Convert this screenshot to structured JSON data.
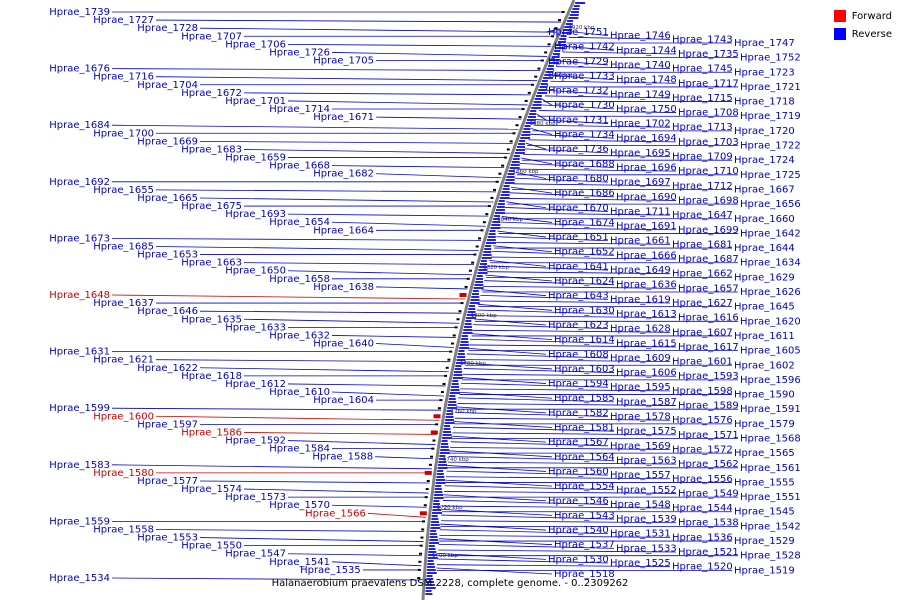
{
  "caption": "Halanaerobium praevalens DSM 2228, complete genome. - 0..2309262",
  "legend": [
    {
      "label": "Forward",
      "color": "#ff0000"
    },
    {
      "label": "Reverse",
      "color": "#0000ff"
    }
  ],
  "colors": {
    "forward": "#cc0000",
    "reverse": "#0000cc",
    "backbone": "#808080"
  },
  "ticks": [
    "1920 kbp",
    "1900 kbp",
    "1880 kbp",
    "1860 kbp",
    "1840 kbp",
    "1820 kbp",
    "1800 kbp",
    "1780 kbp",
    "1760 kbp",
    "1740 kbp",
    "1720 kbp",
    "1700 kbp"
  ],
  "genes_left": [
    {
      "label": "Hprae_1739",
      "strand": "reverse"
    },
    {
      "label": "Hprae_1727",
      "strand": "reverse"
    },
    {
      "label": "Hprae_1728",
      "strand": "reverse"
    },
    {
      "label": "Hprae_1707",
      "strand": "reverse"
    },
    {
      "label": "Hprae_1706",
      "strand": "reverse"
    },
    {
      "label": "Hprae_1726",
      "strand": "reverse"
    },
    {
      "label": "Hprae_1705",
      "strand": "reverse"
    },
    {
      "label": "Hprae_1676",
      "strand": "reverse"
    },
    {
      "label": "Hprae_1716",
      "strand": "reverse"
    },
    {
      "label": "Hprae_1704",
      "strand": "reverse"
    },
    {
      "label": "Hprae_1672",
      "strand": "reverse"
    },
    {
      "label": "Hprae_1701",
      "strand": "reverse"
    },
    {
      "label": "Hprae_1714",
      "strand": "reverse"
    },
    {
      "label": "Hprae_1671",
      "strand": "reverse"
    },
    {
      "label": "Hprae_1684",
      "strand": "reverse"
    },
    {
      "label": "Hprae_1700",
      "strand": "reverse"
    },
    {
      "label": "Hprae_1669",
      "strand": "reverse"
    },
    {
      "label": "Hprae_1683",
      "strand": "reverse"
    },
    {
      "label": "Hprae_1659",
      "strand": "reverse"
    },
    {
      "label": "Hprae_1668",
      "strand": "reverse"
    },
    {
      "label": "Hprae_1682",
      "strand": "reverse"
    },
    {
      "label": "Hprae_1692",
      "strand": "reverse"
    },
    {
      "label": "Hprae_1655",
      "strand": "reverse"
    },
    {
      "label": "Hprae_1665",
      "strand": "reverse"
    },
    {
      "label": "Hprae_1675",
      "strand": "reverse"
    },
    {
      "label": "Hprae_1693",
      "strand": "reverse"
    },
    {
      "label": "Hprae_1654",
      "strand": "reverse"
    },
    {
      "label": "Hprae_1664",
      "strand": "reverse"
    },
    {
      "label": "Hprae_1673",
      "strand": "reverse"
    },
    {
      "label": "Hprae_1685",
      "strand": "reverse"
    },
    {
      "label": "Hprae_1653",
      "strand": "reverse"
    },
    {
      "label": "Hprae_1663",
      "strand": "reverse"
    },
    {
      "label": "Hprae_1650",
      "strand": "reverse"
    },
    {
      "label": "Hprae_1658",
      "strand": "reverse"
    },
    {
      "label": "Hprae_1638",
      "strand": "reverse"
    },
    {
      "label": "Hprae_1648",
      "strand": "forward"
    },
    {
      "label": "Hprae_1637",
      "strand": "reverse"
    },
    {
      "label": "Hprae_1646",
      "strand": "reverse"
    },
    {
      "label": "Hprae_1635",
      "strand": "reverse"
    },
    {
      "label": "Hprae_1633",
      "strand": "reverse"
    },
    {
      "label": "Hprae_1632",
      "strand": "reverse"
    },
    {
      "label": "Hprae_1640",
      "strand": "reverse"
    },
    {
      "label": "Hprae_1631",
      "strand": "reverse"
    },
    {
      "label": "Hprae_1621",
      "strand": "reverse"
    },
    {
      "label": "Hprae_1622",
      "strand": "reverse"
    },
    {
      "label": "Hprae_1618",
      "strand": "reverse"
    },
    {
      "label": "Hprae_1612",
      "strand": "reverse"
    },
    {
      "label": "Hprae_1610",
      "strand": "reverse"
    },
    {
      "label": "Hprae_1604",
      "strand": "reverse"
    },
    {
      "label": "Hprae_1599",
      "strand": "reverse"
    },
    {
      "label": "Hprae_1600",
      "strand": "forward"
    },
    {
      "label": "Hprae_1597",
      "strand": "reverse"
    },
    {
      "label": "Hprae_1586",
      "strand": "forward"
    },
    {
      "label": "Hprae_1592",
      "strand": "reverse"
    },
    {
      "label": "Hprae_1584",
      "strand": "reverse"
    },
    {
      "label": "Hprae_1588",
      "strand": "reverse"
    },
    {
      "label": "Hprae_1583",
      "strand": "reverse"
    },
    {
      "label": "Hprae_1580",
      "strand": "forward"
    },
    {
      "label": "Hprae_1577",
      "strand": "reverse"
    },
    {
      "label": "Hprae_1574",
      "strand": "reverse"
    },
    {
      "label": "Hprae_1573",
      "strand": "reverse"
    },
    {
      "label": "Hprae_1570",
      "strand": "reverse"
    },
    {
      "label": "Hprae_1566",
      "strand": "forward"
    },
    {
      "label": "Hprae_1559",
      "strand": "reverse"
    },
    {
      "label": "Hprae_1558",
      "strand": "reverse"
    },
    {
      "label": "Hprae_1553",
      "strand": "reverse"
    },
    {
      "label": "Hprae_1550",
      "strand": "reverse"
    },
    {
      "label": "Hprae_1547",
      "strand": "reverse"
    },
    {
      "label": "Hprae_1541",
      "strand": "reverse"
    },
    {
      "label": "Hprae_1535",
      "strand": "reverse"
    },
    {
      "label": "Hprae_1534",
      "strand": "reverse"
    }
  ],
  "genes_right": [
    {
      "label": "Hprae_1751",
      "strand": "reverse"
    },
    {
      "label": "Hprae_1746",
      "strand": "reverse"
    },
    {
      "label": "Hprae_1743",
      "strand": "reverse"
    },
    {
      "label": "Hprae_1747",
      "strand": "reverse"
    },
    {
      "label": "Hprae_1742",
      "strand": "reverse"
    },
    {
      "label": "Hprae_1744",
      "strand": "reverse"
    },
    {
      "label": "Hprae_1735",
      "strand": "reverse"
    },
    {
      "label": "Hprae_1752",
      "strand": "reverse"
    },
    {
      "label": "Hprae_1729",
      "strand": "reverse"
    },
    {
      "label": "Hprae_1740",
      "strand": "reverse"
    },
    {
      "label": "Hprae_1745",
      "strand": "reverse"
    },
    {
      "label": "Hprae_1723",
      "strand": "reverse"
    },
    {
      "label": "Hprae_1733",
      "strand": "reverse"
    },
    {
      "label": "Hprae_1748",
      "strand": "reverse"
    },
    {
      "label": "Hprae_1717",
      "strand": "reverse"
    },
    {
      "label": "Hprae_1721",
      "strand": "reverse"
    },
    {
      "label": "Hprae_1732",
      "strand": "reverse"
    },
    {
      "label": "Hprae_1749",
      "strand": "reverse"
    },
    {
      "label": "Hprae_1715",
      "strand": "reverse"
    },
    {
      "label": "Hprae_1718",
      "strand": "reverse"
    },
    {
      "label": "Hprae_1730",
      "strand": "reverse"
    },
    {
      "label": "Hprae_1750",
      "strand": "reverse"
    },
    {
      "label": "Hprae_1708",
      "strand": "reverse"
    },
    {
      "label": "Hprae_1719",
      "strand": "reverse"
    },
    {
      "label": "Hprae_1731",
      "strand": "reverse"
    },
    {
      "label": "Hprae_1702",
      "strand": "reverse"
    },
    {
      "label": "Hprae_1713",
      "strand": "reverse"
    },
    {
      "label": "Hprae_1720",
      "strand": "reverse"
    },
    {
      "label": "Hprae_1734",
      "strand": "reverse"
    },
    {
      "label": "Hprae_1694",
      "strand": "reverse"
    },
    {
      "label": "Hprae_1703",
      "strand": "reverse"
    },
    {
      "label": "Hprae_1722",
      "strand": "reverse"
    },
    {
      "label": "Hprae_1736",
      "strand": "reverse"
    },
    {
      "label": "Hprae_1695",
      "strand": "reverse"
    },
    {
      "label": "Hprae_1709",
      "strand": "reverse"
    },
    {
      "label": "Hprae_1724",
      "strand": "reverse"
    },
    {
      "label": "Hprae_1688",
      "strand": "reverse"
    },
    {
      "label": "Hprae_1696",
      "strand": "reverse"
    },
    {
      "label": "Hprae_1710",
      "strand": "reverse"
    },
    {
      "label": "Hprae_1725",
      "strand": "reverse"
    },
    {
      "label": "Hprae_1680",
      "strand": "reverse"
    },
    {
      "label": "Hprae_1697",
      "strand": "reverse"
    },
    {
      "label": "Hprae_1712",
      "strand": "reverse"
    },
    {
      "label": "Hprae_1667",
      "strand": "reverse"
    },
    {
      "label": "Hprae_1686",
      "strand": "reverse"
    },
    {
      "label": "Hprae_1690",
      "strand": "reverse"
    },
    {
      "label": "Hprae_1698",
      "strand": "reverse"
    },
    {
      "label": "Hprae_1656",
      "strand": "reverse"
    },
    {
      "label": "Hprae_1670",
      "strand": "reverse"
    },
    {
      "label": "Hprae_1711",
      "strand": "reverse"
    },
    {
      "label": "Hprae_1647",
      "strand": "reverse"
    },
    {
      "label": "Hprae_1660",
      "strand": "reverse"
    },
    {
      "label": "Hprae_1674",
      "strand": "reverse"
    },
    {
      "label": "Hprae_1691",
      "strand": "reverse"
    },
    {
      "label": "Hprae_1699",
      "strand": "reverse"
    },
    {
      "label": "Hprae_1642",
      "strand": "reverse"
    },
    {
      "label": "Hprae_1651",
      "strand": "reverse"
    },
    {
      "label": "Hprae_1661",
      "strand": "reverse"
    },
    {
      "label": "Hprae_1681",
      "strand": "reverse"
    },
    {
      "label": "Hprae_1644",
      "strand": "reverse"
    },
    {
      "label": "Hprae_1652",
      "strand": "reverse"
    },
    {
      "label": "Hprae_1666",
      "strand": "reverse"
    },
    {
      "label": "Hprae_1687",
      "strand": "reverse"
    },
    {
      "label": "Hprae_1634",
      "strand": "reverse"
    },
    {
      "label": "Hprae_1641",
      "strand": "reverse"
    },
    {
      "label": "Hprae_1649",
      "strand": "reverse"
    },
    {
      "label": "Hprae_1662",
      "strand": "reverse"
    },
    {
      "label": "Hprae_1629",
      "strand": "reverse"
    },
    {
      "label": "Hprae_1624",
      "strand": "reverse"
    },
    {
      "label": "Hprae_1636",
      "strand": "reverse"
    },
    {
      "label": "Hprae_1657",
      "strand": "reverse"
    },
    {
      "label": "Hprae_1626",
      "strand": "reverse"
    },
    {
      "label": "Hprae_1643",
      "strand": "reverse"
    },
    {
      "label": "Hprae_1619",
      "strand": "reverse"
    },
    {
      "label": "Hprae_1627",
      "strand": "reverse"
    },
    {
      "label": "Hprae_1645",
      "strand": "reverse"
    },
    {
      "label": "Hprae_1630",
      "strand": "reverse"
    },
    {
      "label": "Hprae_1613",
      "strand": "reverse"
    },
    {
      "label": "Hprae_1616",
      "strand": "reverse"
    },
    {
      "label": "Hprae_1620",
      "strand": "reverse"
    },
    {
      "label": "Hprae_1623",
      "strand": "reverse"
    },
    {
      "label": "Hprae_1628",
      "strand": "reverse"
    },
    {
      "label": "Hprae_1607",
      "strand": "reverse"
    },
    {
      "label": "Hprae_1611",
      "strand": "reverse"
    },
    {
      "label": "Hprae_1614",
      "strand": "reverse"
    },
    {
      "label": "Hprae_1615",
      "strand": "reverse"
    },
    {
      "label": "Hprae_1617",
      "strand": "reverse"
    },
    {
      "label": "Hprae_1605",
      "strand": "reverse"
    },
    {
      "label": "Hprae_1608",
      "strand": "reverse"
    },
    {
      "label": "Hprae_1609",
      "strand": "reverse"
    },
    {
      "label": "Hprae_1601",
      "strand": "reverse"
    },
    {
      "label": "Hprae_1602",
      "strand": "reverse"
    },
    {
      "label": "Hprae_1603",
      "strand": "reverse"
    },
    {
      "label": "Hprae_1606",
      "strand": "reverse"
    },
    {
      "label": "Hprae_1593",
      "strand": "reverse"
    },
    {
      "label": "Hprae_1596",
      "strand": "reverse"
    },
    {
      "label": "Hprae_1594",
      "strand": "reverse"
    },
    {
      "label": "Hprae_1595",
      "strand": "reverse"
    },
    {
      "label": "Hprae_1598",
      "strand": "reverse"
    },
    {
      "label": "Hprae_1590",
      "strand": "reverse"
    },
    {
      "label": "Hprae_1585",
      "strand": "reverse"
    },
    {
      "label": "Hprae_1587",
      "strand": "reverse"
    },
    {
      "label": "Hprae_1589",
      "strand": "reverse"
    },
    {
      "label": "Hprae_1591",
      "strand": "reverse"
    },
    {
      "label": "Hprae_1582",
      "strand": "reverse"
    },
    {
      "label": "Hprae_1578",
      "strand": "reverse"
    },
    {
      "label": "Hprae_1576",
      "strand": "reverse"
    },
    {
      "label": "Hprae_1579",
      "strand": "reverse"
    },
    {
      "label": "Hprae_1581",
      "strand": "reverse"
    },
    {
      "label": "Hprae_1575",
      "strand": "reverse"
    },
    {
      "label": "Hprae_1571",
      "strand": "reverse"
    },
    {
      "label": "Hprae_1568",
      "strand": "reverse"
    },
    {
      "label": "Hprae_1567",
      "strand": "reverse"
    },
    {
      "label": "Hprae_1569",
      "strand": "reverse"
    },
    {
      "label": "Hprae_1572",
      "strand": "reverse"
    },
    {
      "label": "Hprae_1565",
      "strand": "reverse"
    },
    {
      "label": "Hprae_1564",
      "strand": "reverse"
    },
    {
      "label": "Hprae_1563",
      "strand": "reverse"
    },
    {
      "label": "Hprae_1562",
      "strand": "reverse"
    },
    {
      "label": "Hprae_1561",
      "strand": "reverse"
    },
    {
      "label": "Hprae_1560",
      "strand": "reverse"
    },
    {
      "label": "Hprae_1557",
      "strand": "reverse"
    },
    {
      "label": "Hprae_1556",
      "strand": "reverse"
    },
    {
      "label": "Hprae_1555",
      "strand": "reverse"
    },
    {
      "label": "Hprae_1554",
      "strand": "reverse"
    },
    {
      "label": "Hprae_1552",
      "strand": "reverse"
    },
    {
      "label": "Hprae_1549",
      "strand": "reverse"
    },
    {
      "label": "Hprae_1551",
      "strand": "reverse"
    },
    {
      "label": "Hprae_1546",
      "strand": "reverse"
    },
    {
      "label": "Hprae_1548",
      "strand": "reverse"
    },
    {
      "label": "Hprae_1544",
      "strand": "reverse"
    },
    {
      "label": "Hprae_1545",
      "strand": "reverse"
    },
    {
      "label": "Hprae_1543",
      "strand": "reverse"
    },
    {
      "label": "Hprae_1539",
      "strand": "reverse"
    },
    {
      "label": "Hprae_1538",
      "strand": "reverse"
    },
    {
      "label": "Hprae_1542",
      "strand": "reverse"
    },
    {
      "label": "Hprae_1540",
      "strand": "reverse"
    },
    {
      "label": "Hprae_1531",
      "strand": "reverse"
    },
    {
      "label": "Hprae_1536",
      "strand": "reverse"
    },
    {
      "label": "Hprae_1529",
      "strand": "reverse"
    },
    {
      "label": "Hprae_1537",
      "strand": "reverse"
    },
    {
      "label": "Hprae_1533",
      "strand": "reverse"
    },
    {
      "label": "Hprae_1521",
      "strand": "reverse"
    },
    {
      "label": "Hprae_1528",
      "strand": "reverse"
    },
    {
      "label": "Hprae_1530",
      "strand": "reverse"
    },
    {
      "label": "Hprae_1525",
      "strand": "reverse"
    },
    {
      "label": "Hprae_1520",
      "strand": "reverse"
    },
    {
      "label": "Hprae_1519",
      "strand": "reverse"
    },
    {
      "label": "Hprae_1518",
      "strand": "reverse"
    }
  ]
}
